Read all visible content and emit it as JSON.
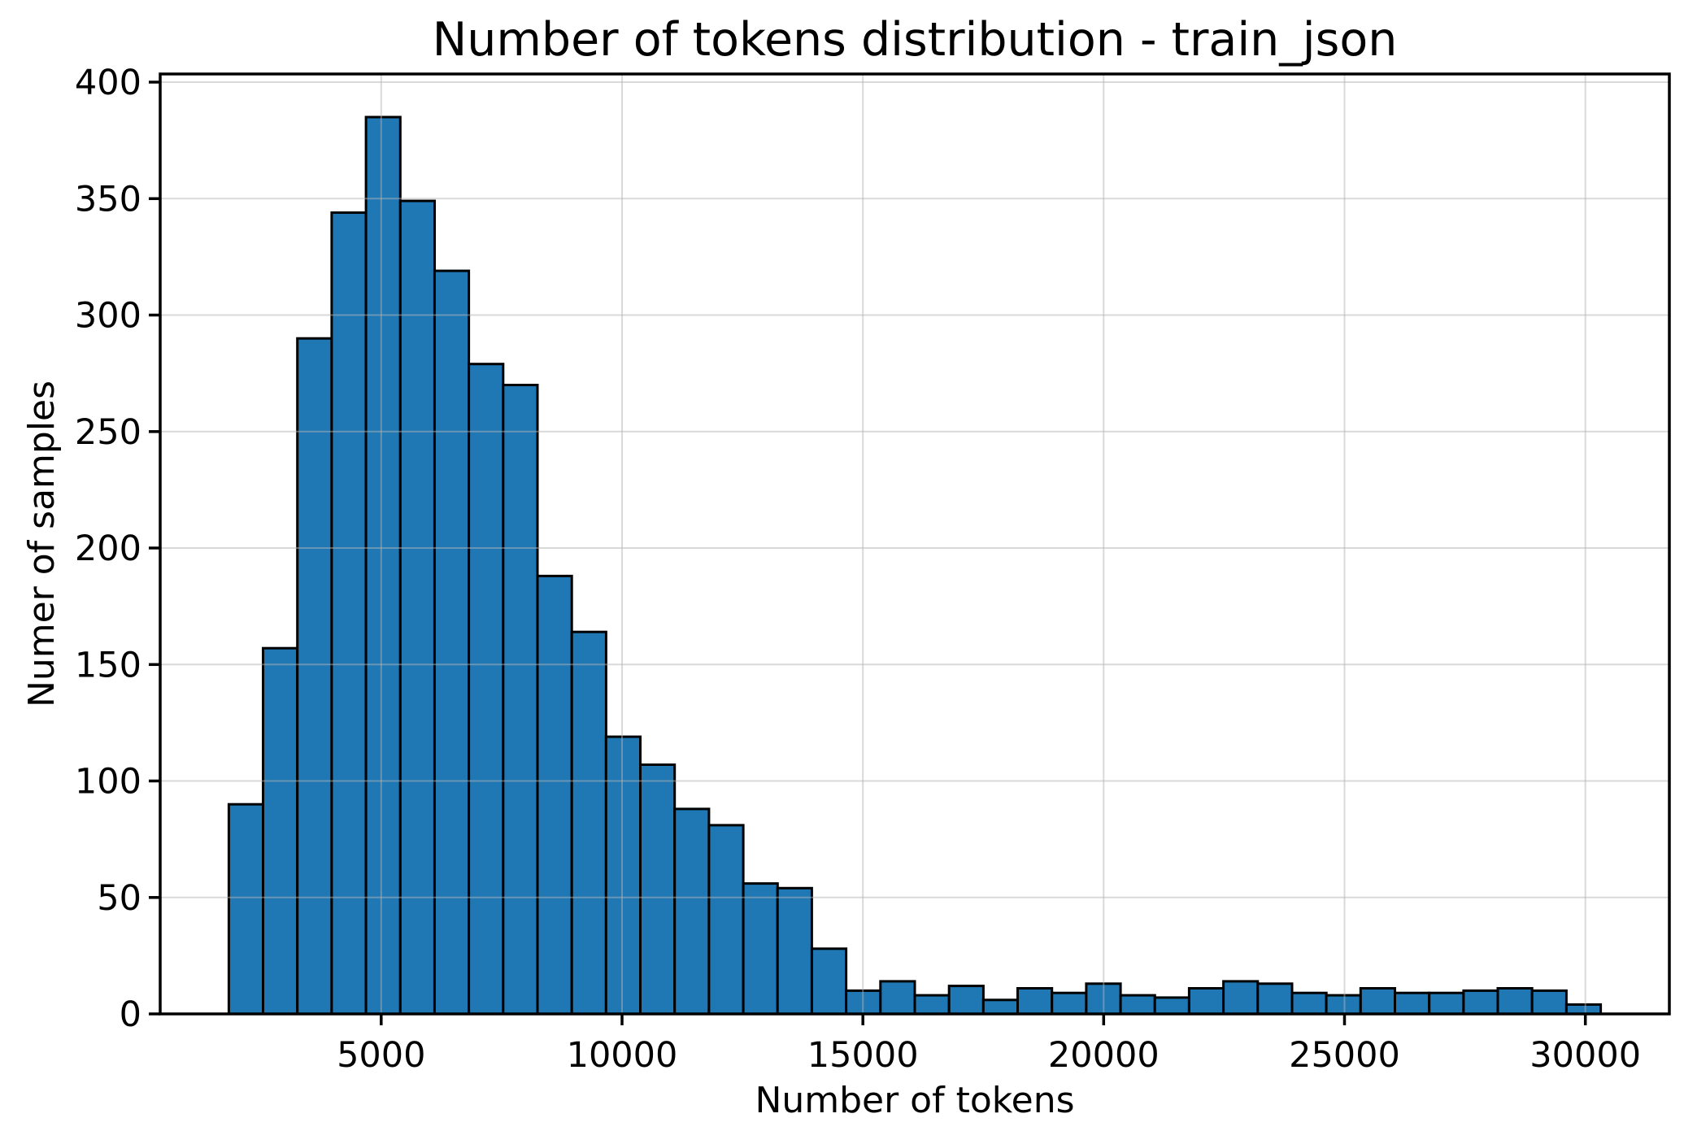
{
  "chart_data": {
    "type": "bar",
    "subtype": "histogram",
    "title": "Number of tokens distribution - train_json",
    "xlabel": "Number of tokens",
    "ylabel": "Numer of samples",
    "bin_start": 1835,
    "bin_width": 712.1,
    "counts": [
      90,
      157,
      290,
      344,
      385,
      349,
      319,
      279,
      270,
      188,
      164,
      119,
      107,
      88,
      81,
      56,
      54,
      28,
      10,
      14,
      8,
      12,
      6,
      11,
      9,
      13,
      8,
      7,
      11,
      14,
      13,
      9,
      8,
      11,
      9,
      9,
      10,
      11,
      10,
      4
    ],
    "x_ticks": [
      5000,
      10000,
      15000,
      20000,
      25000,
      30000
    ],
    "x_tick_labels": [
      "5000",
      "10000",
      "15000",
      "20000",
      "25000",
      "30000"
    ],
    "y_ticks": [
      0,
      50,
      100,
      150,
      200,
      250,
      300,
      350,
      400
    ],
    "y_tick_labels": [
      "0",
      "50",
      "100",
      "150",
      "200",
      "250",
      "300",
      "350",
      "400"
    ],
    "xlim": [
      411,
      31744
    ],
    "ylim": [
      0,
      403.5
    ],
    "grid": true,
    "grid_above_bars": true,
    "legend_position": "none",
    "bar_fill_color": "#1f77b4",
    "bar_edge_color": "#000000",
    "grid_color": "#b4b4b4",
    "grid_opacity": 0.5,
    "spine_color": "#000000",
    "text_color": "#000000",
    "background_color": "#ffffff"
  }
}
